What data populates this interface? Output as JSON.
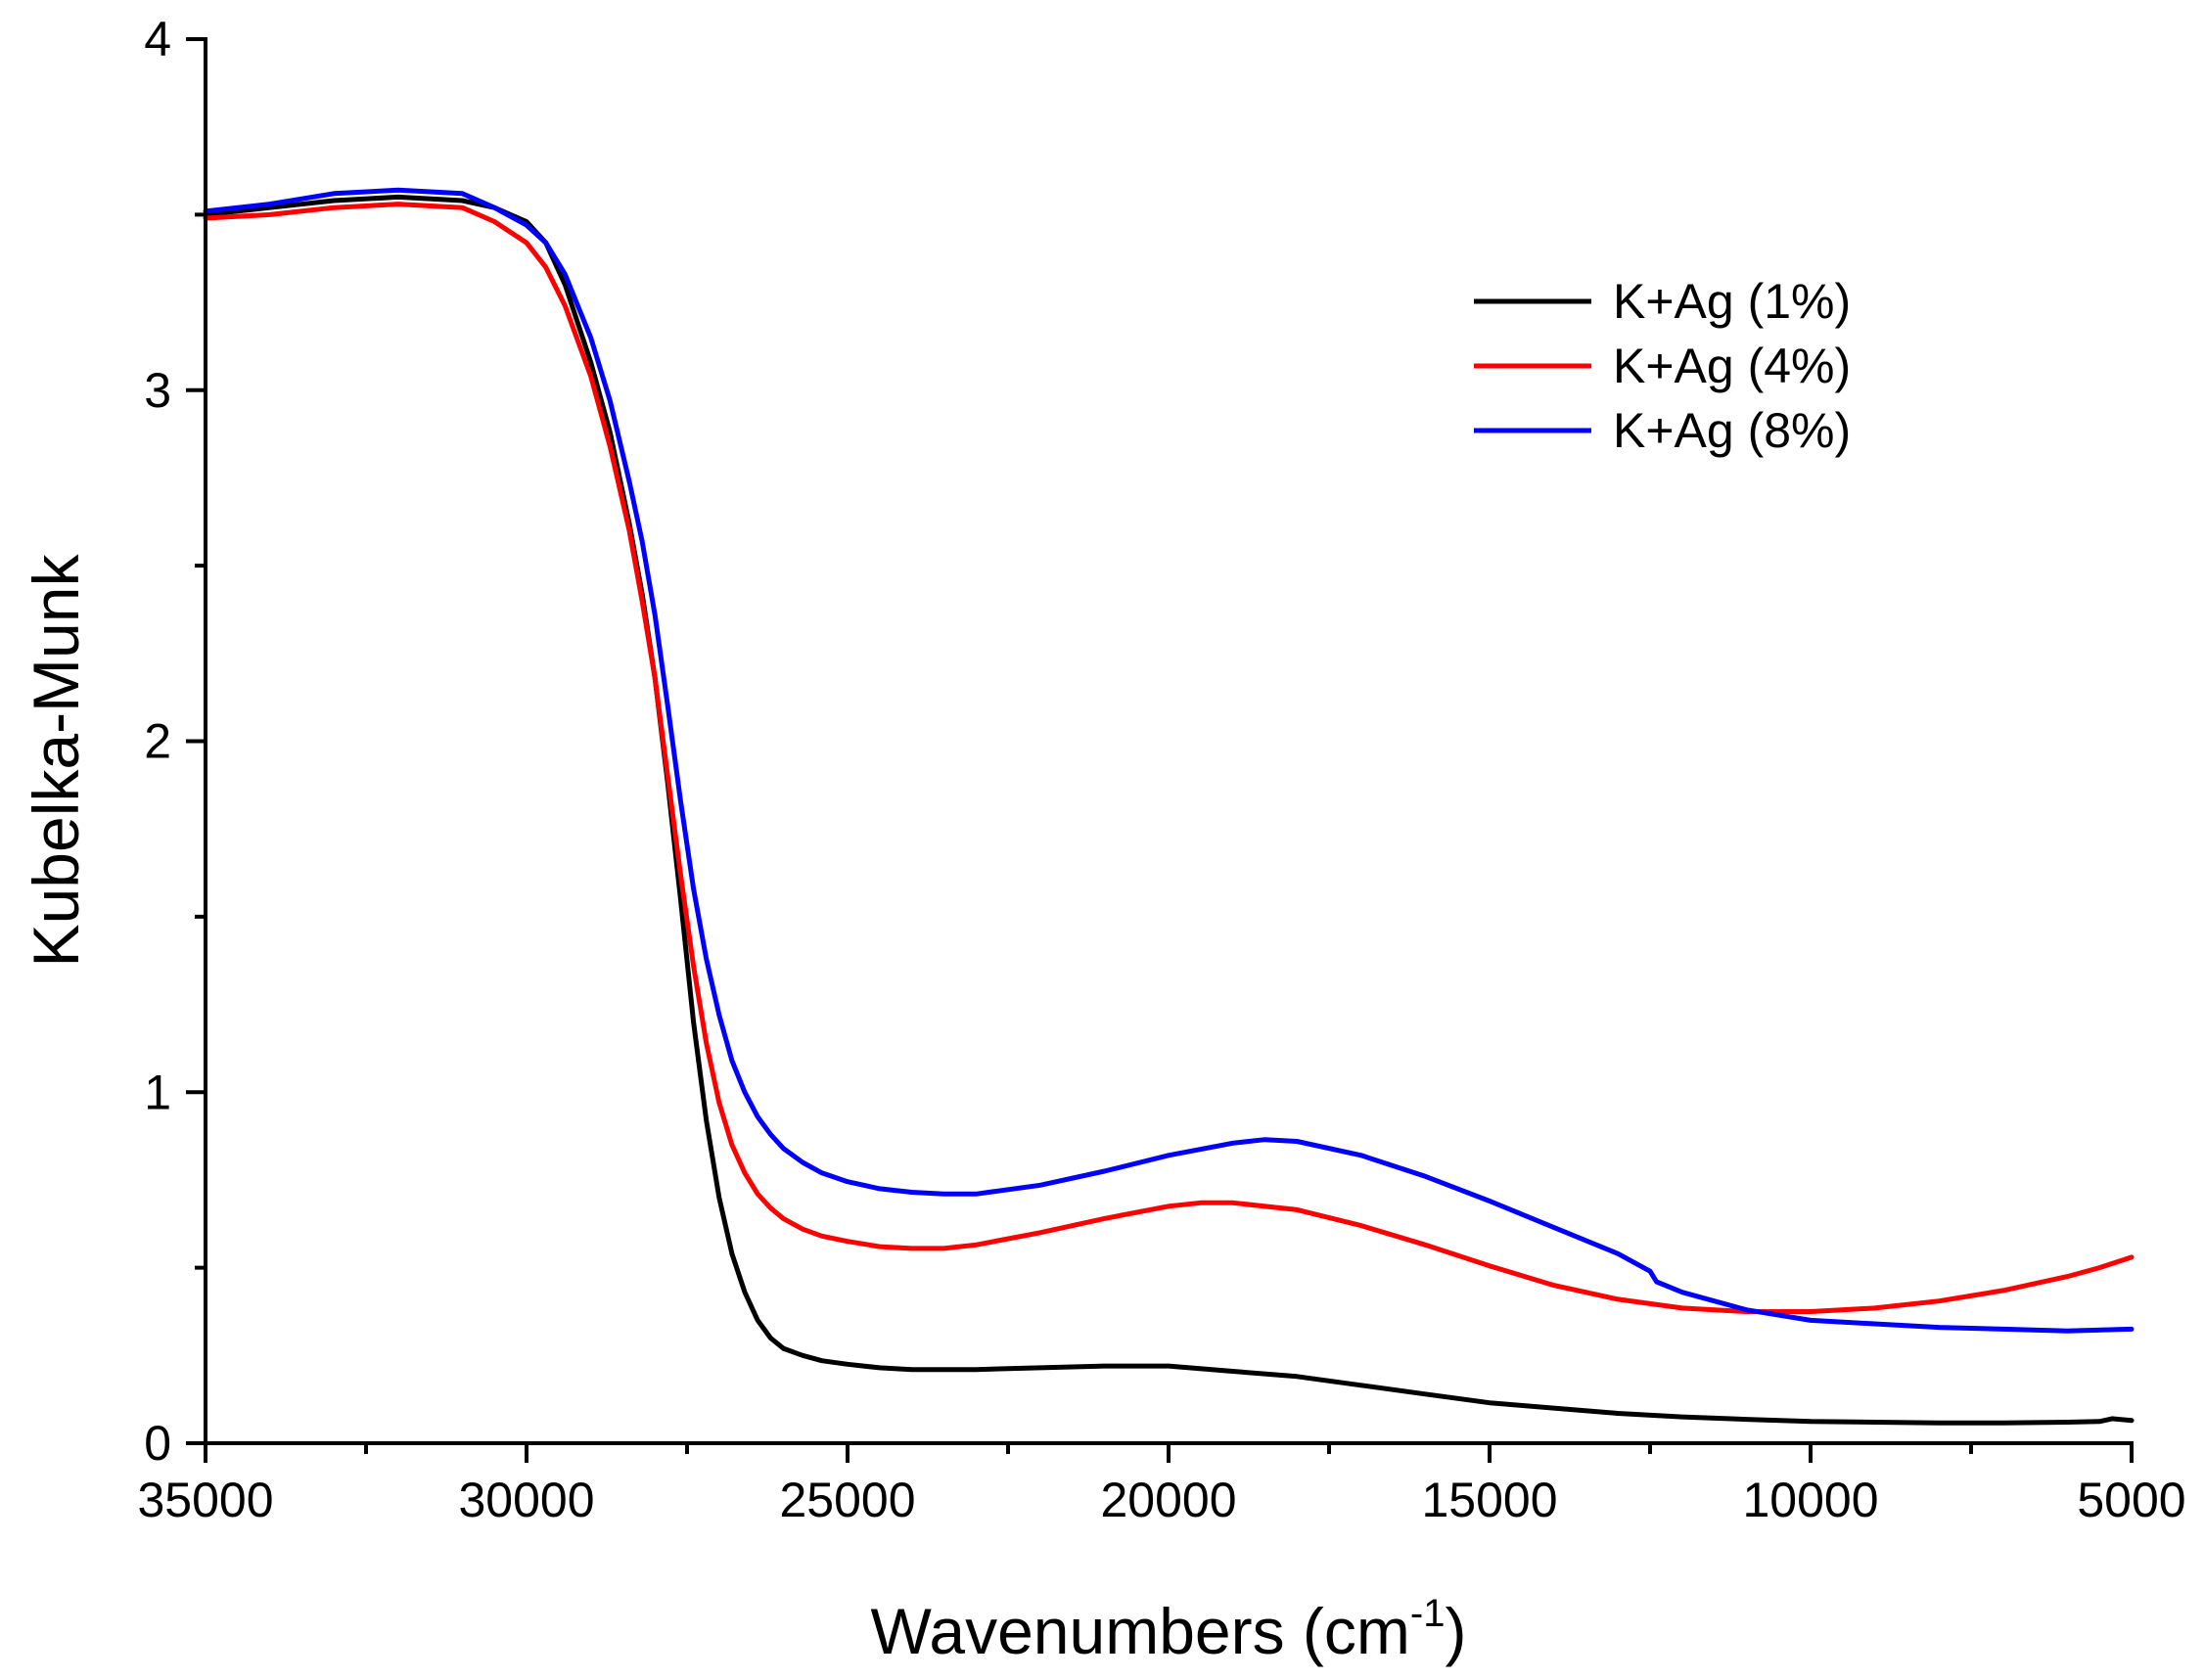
{
  "chart_data": {
    "type": "line",
    "title": "",
    "xlabel": "Wavenumbers (cm",
    "xlabel_superscript": "-1",
    "xlabel_suffix": ")",
    "ylabel": "Kubelka-Munk",
    "xlim": [
      35000,
      5000
    ],
    "ylim": [
      0,
      4
    ],
    "x_reversed": true,
    "x_ticks": [
      35000,
      30000,
      25000,
      20000,
      15000,
      10000,
      5000
    ],
    "x_tick_labels": [
      "35000",
      "30000",
      "25000",
      "20000",
      "15000",
      "10000",
      "5000"
    ],
    "x_minor_ticks": [
      32500,
      27500,
      22500,
      17500,
      12500,
      7500
    ],
    "y_ticks": [
      0,
      1,
      2,
      3,
      4
    ],
    "y_tick_labels": [
      "0",
      "1",
      "2",
      "3",
      "4"
    ],
    "y_minor_ticks": [
      0.5,
      1.5,
      2.5,
      3.5
    ],
    "grid": false,
    "legend_position": "top-right",
    "series": [
      {
        "name": "K+Ag (1%)",
        "color": "#000000",
        "x": [
          35000,
          34000,
          33000,
          32000,
          31000,
          30500,
          30000,
          29700,
          29400,
          29000,
          28700,
          28400,
          28200,
          28000,
          27800,
          27600,
          27400,
          27200,
          27000,
          26800,
          26600,
          26400,
          26200,
          26000,
          25700,
          25400,
          25000,
          24500,
          24000,
          23500,
          23000,
          22000,
          21000,
          20000,
          19000,
          18000,
          17000,
          16000,
          15000,
          14000,
          13000,
          12000,
          11000,
          10000,
          9000,
          8000,
          7000,
          6000,
          5500,
          5300,
          5000
        ],
        "y": [
          3.5,
          3.52,
          3.54,
          3.55,
          3.54,
          3.52,
          3.48,
          3.42,
          3.3,
          3.08,
          2.88,
          2.62,
          2.42,
          2.18,
          1.88,
          1.55,
          1.2,
          0.92,
          0.7,
          0.54,
          0.43,
          0.35,
          0.3,
          0.27,
          0.25,
          0.235,
          0.225,
          0.215,
          0.21,
          0.21,
          0.21,
          0.215,
          0.22,
          0.22,
          0.205,
          0.19,
          0.165,
          0.14,
          0.115,
          0.1,
          0.085,
          0.075,
          0.068,
          0.062,
          0.06,
          0.058,
          0.058,
          0.06,
          0.062,
          0.07,
          0.065
        ]
      },
      {
        "name": "K+Ag (4%)",
        "color": "#ff0000",
        "x": [
          35000,
          34000,
          33000,
          32000,
          31000,
          30500,
          30000,
          29700,
          29400,
          29000,
          28700,
          28400,
          28200,
          28000,
          27800,
          27600,
          27400,
          27200,
          27000,
          26800,
          26600,
          26400,
          26200,
          26000,
          25700,
          25400,
          25000,
          24500,
          24000,
          23500,
          23000,
          22000,
          21000,
          20000,
          19500,
          19000,
          18000,
          17000,
          16000,
          15000,
          14000,
          13000,
          12000,
          11000,
          10000,
          9000,
          8000,
          7000,
          6000,
          5500,
          5000
        ],
        "y": [
          3.49,
          3.5,
          3.52,
          3.53,
          3.52,
          3.48,
          3.42,
          3.35,
          3.24,
          3.04,
          2.84,
          2.6,
          2.4,
          2.18,
          1.9,
          1.62,
          1.36,
          1.14,
          0.97,
          0.85,
          0.77,
          0.71,
          0.67,
          0.64,
          0.61,
          0.59,
          0.575,
          0.56,
          0.555,
          0.555,
          0.565,
          0.6,
          0.64,
          0.675,
          0.685,
          0.685,
          0.665,
          0.62,
          0.565,
          0.505,
          0.45,
          0.41,
          0.385,
          0.375,
          0.375,
          0.385,
          0.405,
          0.435,
          0.475,
          0.5,
          0.53
        ]
      },
      {
        "name": "K+Ag (8%)",
        "color": "#0000ff",
        "x": [
          35000,
          34000,
          33000,
          32000,
          31000,
          30500,
          30000,
          29700,
          29400,
          29000,
          28700,
          28400,
          28200,
          28000,
          27800,
          27600,
          27400,
          27200,
          27000,
          26800,
          26600,
          26400,
          26200,
          26000,
          25700,
          25400,
          25000,
          24500,
          24000,
          23500,
          23000,
          22000,
          21000,
          20000,
          19000,
          18500,
          18000,
          17000,
          16000,
          15000,
          14000,
          13000,
          12500,
          12400,
          12000,
          11000,
          10000,
          9000,
          8000,
          7000,
          6000,
          5000
        ],
        "y": [
          3.51,
          3.53,
          3.56,
          3.57,
          3.56,
          3.52,
          3.47,
          3.42,
          3.33,
          3.15,
          2.97,
          2.74,
          2.57,
          2.36,
          2.1,
          1.83,
          1.58,
          1.38,
          1.22,
          1.09,
          1.0,
          0.93,
          0.88,
          0.84,
          0.8,
          0.77,
          0.745,
          0.725,
          0.715,
          0.71,
          0.71,
          0.735,
          0.775,
          0.82,
          0.855,
          0.865,
          0.86,
          0.82,
          0.76,
          0.69,
          0.615,
          0.54,
          0.49,
          0.46,
          0.43,
          0.38,
          0.35,
          0.34,
          0.33,
          0.325,
          0.32,
          0.325
        ]
      }
    ]
  }
}
